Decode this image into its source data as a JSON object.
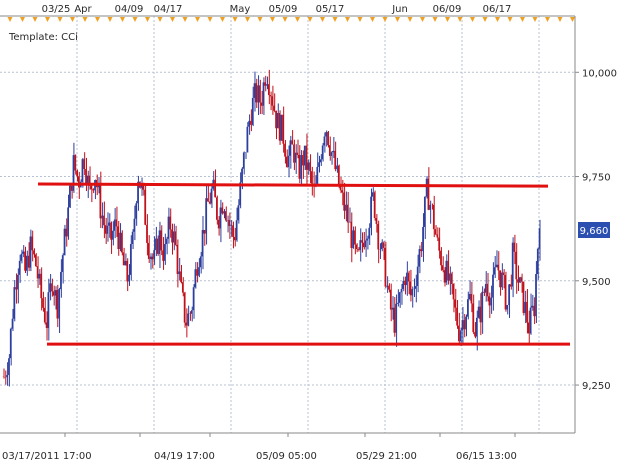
{
  "template_label": "Template: CCi",
  "current_price_label": "9,660",
  "colors": {
    "up_candle": "#2d3f9e",
    "down_candle": "#c0101a",
    "level_line": "#e01010",
    "marker": "#f0a020",
    "price_box": "#2a4fb0",
    "grid": "#b9c2d2",
    "axis": "#8a8a8a"
  },
  "chart_data": {
    "type": "candlestick",
    "top_axis_labels": [
      "03/25",
      "Apr",
      "04/09",
      "04/17",
      "May",
      "05/09",
      "05/17",
      "Jun",
      "06/09",
      "06/17"
    ],
    "bottom_axis_labels": [
      "03/17/2011 17:00",
      "04/19 17:00",
      "05/09 05:00",
      "05/29 21:00",
      "06/15 13:00"
    ],
    "y_ticks": [
      9250,
      9500,
      9750,
      10000
    ],
    "y_tick_labels": [
      "9,250",
      "9,500",
      "9,750",
      "10,000"
    ],
    "ylim": [
      9135,
      10135
    ],
    "current_price": 9660,
    "levels": [
      {
        "x_start": 0.0,
        "x_end": 1.0,
        "y_start": 9732,
        "y_end": 9727
      },
      {
        "x_start": 0.017,
        "x_end": 1.0,
        "y_start": 9348,
        "y_end": 9348
      }
    ],
    "series": [
      {
        "x": 0.0,
        "y": 9270
      },
      {
        "x": 0.01,
        "y": 9320
      },
      {
        "x": 0.02,
        "y": 9480
      },
      {
        "x": 0.03,
        "y": 9570
      },
      {
        "x": 0.04,
        "y": 9520
      },
      {
        "x": 0.05,
        "y": 9580
      },
      {
        "x": 0.06,
        "y": 9540
      },
      {
        "x": 0.07,
        "y": 9460
      },
      {
        "x": 0.08,
        "y": 9400
      },
      {
        "x": 0.09,
        "y": 9510
      },
      {
        "x": 0.1,
        "y": 9440
      },
      {
        "x": 0.11,
        "y": 9560
      },
      {
        "x": 0.12,
        "y": 9660
      },
      {
        "x": 0.13,
        "y": 9780
      },
      {
        "x": 0.14,
        "y": 9740
      },
      {
        "x": 0.15,
        "y": 9800
      },
      {
        "x": 0.16,
        "y": 9710
      },
      {
        "x": 0.17,
        "y": 9760
      },
      {
        "x": 0.18,
        "y": 9680
      },
      {
        "x": 0.19,
        "y": 9620
      },
      {
        "x": 0.2,
        "y": 9600
      },
      {
        "x": 0.21,
        "y": 9640
      },
      {
        "x": 0.22,
        "y": 9560
      },
      {
        "x": 0.23,
        "y": 9500
      },
      {
        "x": 0.24,
        "y": 9580
      },
      {
        "x": 0.25,
        "y": 9760
      },
      {
        "x": 0.26,
        "y": 9700
      },
      {
        "x": 0.27,
        "y": 9590
      },
      {
        "x": 0.28,
        "y": 9540
      },
      {
        "x": 0.29,
        "y": 9610
      },
      {
        "x": 0.3,
        "y": 9560
      },
      {
        "x": 0.31,
        "y": 9640
      },
      {
        "x": 0.32,
        "y": 9590
      },
      {
        "x": 0.33,
        "y": 9480
      },
      {
        "x": 0.34,
        "y": 9400
      },
      {
        "x": 0.35,
        "y": 9430
      },
      {
        "x": 0.36,
        "y": 9540
      },
      {
        "x": 0.37,
        "y": 9600
      },
      {
        "x": 0.38,
        "y": 9680
      },
      {
        "x": 0.39,
        "y": 9720
      },
      {
        "x": 0.4,
        "y": 9650
      },
      {
        "x": 0.41,
        "y": 9700
      },
      {
        "x": 0.42,
        "y": 9640
      },
      {
        "x": 0.43,
        "y": 9600
      },
      {
        "x": 0.44,
        "y": 9700
      },
      {
        "x": 0.45,
        "y": 9810
      },
      {
        "x": 0.46,
        "y": 9900
      },
      {
        "x": 0.47,
        "y": 9950
      },
      {
        "x": 0.48,
        "y": 9930
      },
      {
        "x": 0.49,
        "y": 10010
      },
      {
        "x": 0.5,
        "y": 9950
      },
      {
        "x": 0.51,
        "y": 9880
      },
      {
        "x": 0.52,
        "y": 9860
      },
      {
        "x": 0.53,
        "y": 9790
      },
      {
        "x": 0.54,
        "y": 9820
      },
      {
        "x": 0.55,
        "y": 9760
      },
      {
        "x": 0.56,
        "y": 9800
      },
      {
        "x": 0.57,
        "y": 9760
      },
      {
        "x": 0.58,
        "y": 9700
      },
      {
        "x": 0.59,
        "y": 9800
      },
      {
        "x": 0.6,
        "y": 9880
      },
      {
        "x": 0.61,
        "y": 9820
      },
      {
        "x": 0.62,
        "y": 9760
      },
      {
        "x": 0.63,
        "y": 9700
      },
      {
        "x": 0.64,
        "y": 9660
      },
      {
        "x": 0.65,
        "y": 9600
      },
      {
        "x": 0.66,
        "y": 9540
      },
      {
        "x": 0.67,
        "y": 9600
      },
      {
        "x": 0.68,
        "y": 9640
      },
      {
        "x": 0.69,
        "y": 9700
      },
      {
        "x": 0.7,
        "y": 9600
      },
      {
        "x": 0.71,
        "y": 9540
      },
      {
        "x": 0.72,
        "y": 9440
      },
      {
        "x": 0.73,
        "y": 9400
      },
      {
        "x": 0.74,
        "y": 9460
      },
      {
        "x": 0.75,
        "y": 9520
      },
      {
        "x": 0.76,
        "y": 9460
      },
      {
        "x": 0.77,
        "y": 9520
      },
      {
        "x": 0.78,
        "y": 9600
      },
      {
        "x": 0.79,
        "y": 9720
      },
      {
        "x": 0.8,
        "y": 9660
      },
      {
        "x": 0.81,
        "y": 9580
      },
      {
        "x": 0.82,
        "y": 9540
      },
      {
        "x": 0.83,
        "y": 9500
      },
      {
        "x": 0.84,
        "y": 9440
      },
      {
        "x": 0.85,
        "y": 9380
      },
      {
        "x": 0.86,
        "y": 9420
      },
      {
        "x": 0.87,
        "y": 9460
      },
      {
        "x": 0.88,
        "y": 9380
      },
      {
        "x": 0.89,
        "y": 9430
      },
      {
        "x": 0.9,
        "y": 9500
      },
      {
        "x": 0.91,
        "y": 9460
      },
      {
        "x": 0.92,
        "y": 9540
      },
      {
        "x": 0.93,
        "y": 9500
      },
      {
        "x": 0.94,
        "y": 9440
      },
      {
        "x": 0.95,
        "y": 9560
      },
      {
        "x": 0.96,
        "y": 9500
      },
      {
        "x": 0.97,
        "y": 9450
      },
      {
        "x": 0.98,
        "y": 9390
      },
      {
        "x": 0.99,
        "y": 9440
      },
      {
        "x": 1.0,
        "y": 9660
      }
    ]
  }
}
